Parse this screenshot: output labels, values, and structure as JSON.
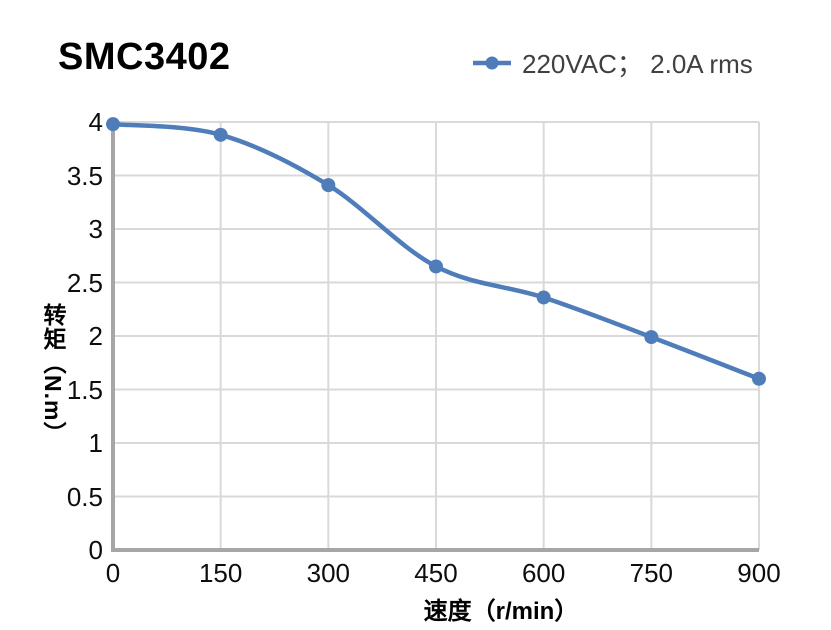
{
  "title": "SMC3402",
  "legend": {
    "label": "220VAC； 2.0A rms"
  },
  "chart_data": {
    "type": "line",
    "title": "SMC3402",
    "xlabel": "速度（r/min）",
    "ylabel": "转矩（N.m）",
    "x": [
      0,
      150,
      300,
      450,
      600,
      750,
      900
    ],
    "series": [
      {
        "name": "220VAC； 2.0A rms",
        "values": [
          3.98,
          3.88,
          3.41,
          2.65,
          2.36,
          1.99,
          1.6
        ],
        "color": "#4e7dba",
        "marker": "circle",
        "smooth": true
      }
    ],
    "xlim": [
      0,
      900
    ],
    "ylim": [
      0,
      4
    ],
    "x_ticks": [
      0,
      150,
      300,
      450,
      600,
      750,
      900
    ],
    "y_ticks": [
      0,
      0.5,
      1,
      1.5,
      2,
      2.5,
      3,
      3.5,
      4
    ],
    "grid": true,
    "legend_position": "top-right",
    "colors": {
      "gridline": "#d9d9d9",
      "axis_line": "#a6a6a6",
      "tick_label": "#0d0d0d"
    }
  }
}
